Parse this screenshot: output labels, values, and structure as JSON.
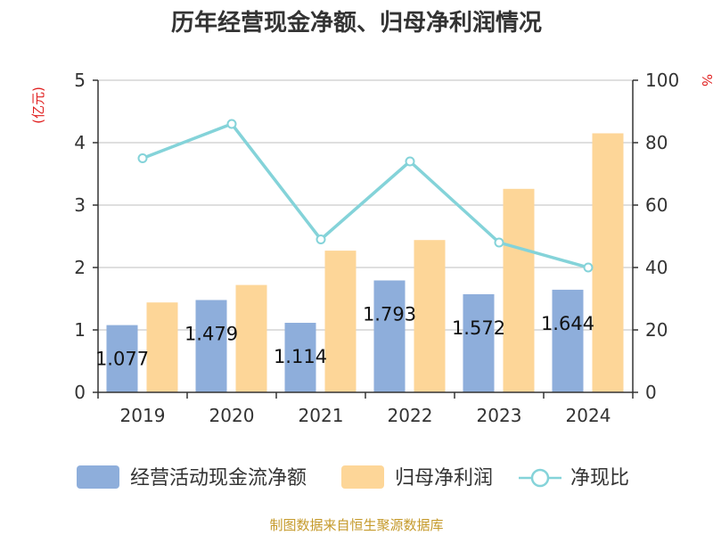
{
  "chart_data": {
    "type": "bar",
    "title": "历年经营现金净额、归母净利润情况",
    "categories": [
      "2019",
      "2020",
      "2021",
      "2022",
      "2023",
      "2024"
    ],
    "series": [
      {
        "name": "经营活动现金流净额",
        "kind": "bar",
        "axis": "left",
        "color": "#8eaedb",
        "values": [
          1.077,
          1.479,
          1.114,
          1.793,
          1.572,
          1.644
        ]
      },
      {
        "name": "归母净利润",
        "kind": "bar",
        "axis": "left",
        "color": "#fdd698",
        "values": [
          1.44,
          1.72,
          2.27,
          2.44,
          3.26,
          4.15
        ]
      },
      {
        "name": "净现比",
        "kind": "line",
        "axis": "right",
        "color": "#84d3d9",
        "values": [
          75,
          86,
          49,
          74,
          48,
          40
        ]
      }
    ],
    "data_labels": [
      "1.077",
      "1.479",
      "1.114",
      "1.793",
      "1.572",
      "1.644"
    ],
    "left_axis": {
      "unit": "(亿元)",
      "min": 0,
      "max": 5,
      "ticks": [
        "0",
        "1",
        "2",
        "3",
        "4",
        "5"
      ]
    },
    "right_axis": {
      "unit": "%",
      "min": 0,
      "max": 100,
      "ticks": [
        "0",
        "20",
        "40",
        "60",
        "80",
        "100"
      ]
    },
    "grid": true,
    "legend_position": "bottom"
  },
  "source_text": "制图数据来自恒生聚源数据库"
}
